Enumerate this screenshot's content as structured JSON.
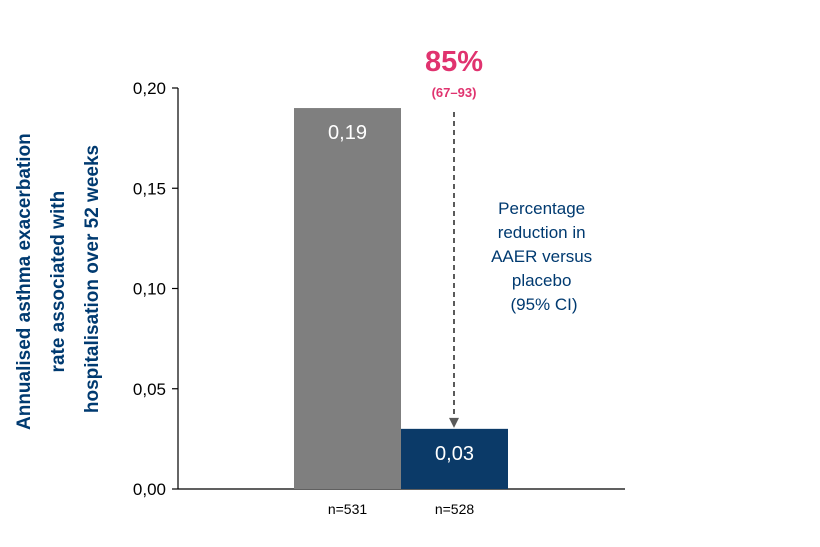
{
  "colors": {
    "axis_title": "#003a70",
    "accent": "#e0336f",
    "bar_placebo": "#7f7f7f",
    "bar_active": "#0b3a68",
    "annotation_text": "#003a70"
  },
  "chart_data": {
    "type": "bar",
    "ylabel": "Annualised asthma exacerbation rate associated with hospitalisation over 52 weeks",
    "ylabel_lines": [
      "Annualised asthma exacerbation",
      "rate associated with",
      "hospitalisation over 52 weeks"
    ],
    "ylim": [
      0,
      0.2
    ],
    "yticks": [
      0,
      0.05,
      0.1,
      0.15,
      0.2
    ],
    "ytick_labels": [
      "0,00",
      "0,05",
      "0,10",
      "0,15",
      "0,20"
    ],
    "categories": [
      "n=531",
      "n=528"
    ],
    "values": [
      0.19,
      0.03
    ],
    "value_labels": [
      "0,19",
      "0,03"
    ],
    "grid": false,
    "annotation": {
      "percent": "85%",
      "ci": "(67–93)",
      "note_lines": [
        "Percentage",
        "reduction in",
        "AAER versus",
        "placebo",
        "(95% CI)"
      ]
    }
  }
}
